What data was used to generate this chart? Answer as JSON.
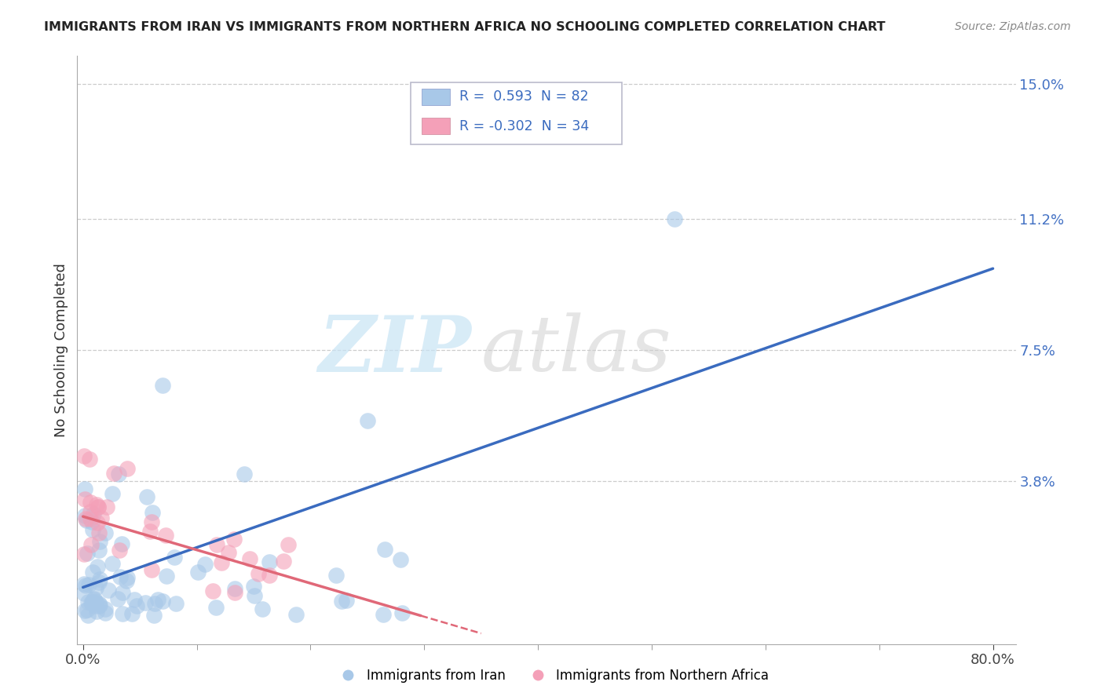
{
  "title": "IMMIGRANTS FROM IRAN VS IMMIGRANTS FROM NORTHERN AFRICA NO SCHOOLING COMPLETED CORRELATION CHART",
  "source": "Source: ZipAtlas.com",
  "ylabel": "No Schooling Completed",
  "legend_label1": "Immigrants from Iran",
  "legend_label2": "Immigrants from Northern Africa",
  "R1": 0.593,
  "N1": 82,
  "R2": -0.302,
  "N2": 34,
  "color1": "#a8c8e8",
  "color2": "#f4a0b8",
  "trend1_color": "#3a6bbf",
  "trend2_color": "#e06878",
  "xlim_min": -0.005,
  "xlim_max": 0.82,
  "ylim_min": -0.008,
  "ylim_max": 0.158,
  "ytick_vals": [
    0.038,
    0.075,
    0.112,
    0.15
  ],
  "ytick_labels": [
    "3.8%",
    "7.5%",
    "11.2%",
    "15.0%"
  ],
  "xtick_vals": [
    0.0,
    0.8
  ],
  "xtick_labels": [
    "0.0%",
    "80.0%"
  ],
  "trend1_x0": 0.0,
  "trend1_x1": 0.8,
  "trend1_y0": 0.008,
  "trend1_y1": 0.098,
  "trend2_x0": 0.0,
  "trend2_x1": 0.35,
  "trend2_y0": 0.028,
  "trend2_y1": -0.005,
  "background_color": "#ffffff",
  "grid_color": "#cccccc",
  "spine_color": "#aaaaaa"
}
